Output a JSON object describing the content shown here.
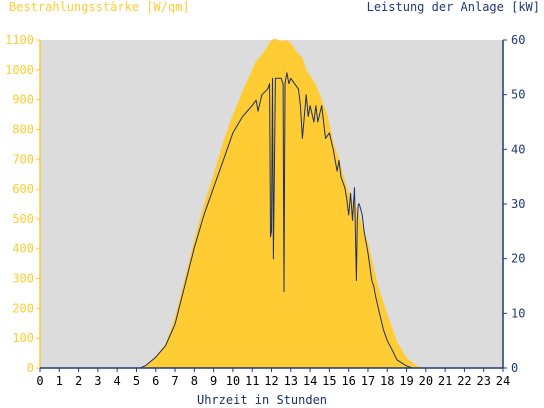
{
  "chart_data": {
    "type": "area",
    "left_axis_title": "Bestrahlungsstärke [W/qm]",
    "right_axis_title": "Leistung der Anlage [kW]",
    "xlabel": "Uhrzeit in Stunden",
    "x_ticks": [
      "0",
      "1",
      "2",
      "3",
      "4",
      "5",
      "6",
      "7",
      "8",
      "9",
      "10",
      "11",
      "12",
      "13",
      "14",
      "15",
      "16",
      "17",
      "18",
      "19",
      "20",
      "21",
      "22",
      "23",
      "24"
    ],
    "y_left_ticks": [
      "0",
      "100",
      "200",
      "300",
      "400",
      "500",
      "600",
      "700",
      "800",
      "900",
      "1000",
      "1100"
    ],
    "y_right_ticks": [
      "0",
      "10",
      "20",
      "30",
      "40",
      "50",
      "60"
    ],
    "xlim": [
      0,
      24
    ],
    "ylim_left": [
      0,
      1100
    ],
    "ylim_right": [
      0,
      60
    ],
    "grid": false,
    "colors": {
      "irradiance_fill": "#FFCC33",
      "power_line": "#1F2F66",
      "plot_background": "#DCDCDC",
      "left_axis_color": "#FFCC33",
      "right_axis_color": "#1F3A7A"
    },
    "series": [
      {
        "axis": "left",
        "style": "area",
        "x": [
          0,
          5.2,
          5.5,
          6.0,
          6.5,
          7.0,
          7.5,
          8.0,
          8.5,
          9.0,
          9.5,
          10.0,
          10.5,
          11.0,
          11.2,
          11.5,
          11.8,
          12.0,
          12.2,
          12.5,
          12.8,
          13.0,
          13.3,
          13.6,
          13.8,
          14.0,
          14.3,
          14.6,
          14.9,
          15.2,
          15.5,
          15.8,
          16.0,
          16.2,
          16.4,
          16.5,
          16.7,
          17.0,
          17.3,
          17.5,
          18.0,
          18.5,
          19.0,
          19.5,
          20.0,
          24
        ],
        "y": [
          0,
          0,
          10,
          40,
          80,
          170,
          300,
          430,
          550,
          650,
          760,
          850,
          930,
          1000,
          1030,
          1050,
          1080,
          1100,
          1105,
          1095,
          1100,
          1090,
          1060,
          1040,
          1000,
          980,
          950,
          900,
          850,
          760,
          700,
          630,
          590,
          560,
          540,
          520,
          480,
          420,
          340,
          280,
          180,
          90,
          35,
          8,
          0,
          0
        ]
      },
      {
        "axis": "right",
        "style": "line",
        "x": [
          0,
          5.2,
          5.5,
          6.0,
          6.5,
          7.0,
          7.5,
          8.0,
          8.5,
          9.0,
          9.5,
          10.0,
          10.5,
          11.0,
          11.2,
          11.3,
          11.5,
          11.8,
          11.9,
          11.95,
          12.0,
          12.05,
          12.1,
          12.2,
          12.5,
          12.6,
          12.65,
          12.7,
          12.8,
          12.9,
          13.0,
          13.2,
          13.4,
          13.5,
          13.6,
          13.8,
          13.9,
          14.0,
          14.2,
          14.3,
          14.4,
          14.6,
          14.8,
          15.0,
          15.2,
          15.4,
          15.5,
          15.6,
          15.8,
          15.9,
          16.0,
          16.1,
          16.2,
          16.3,
          16.4,
          16.45,
          16.5,
          16.55,
          16.7,
          16.8,
          17.0,
          17.2,
          17.3,
          17.4,
          17.6,
          17.8,
          18.0,
          18.3,
          18.5,
          18.8,
          19.0,
          19.3,
          19.6,
          20.0,
          24
        ],
        "y": [
          0,
          0,
          0.5,
          2,
          4,
          8,
          15,
          22,
          28,
          33,
          38,
          43,
          46,
          48,
          49,
          47,
          50,
          51,
          52,
          24,
          25,
          53,
          20,
          53,
          53,
          52,
          14,
          52,
          54,
          52,
          53,
          52,
          51,
          48,
          42,
          50,
          46,
          48,
          45,
          48,
          45,
          48,
          42,
          43,
          40,
          36,
          38,
          35,
          33,
          31,
          28,
          32,
          27,
          33,
          16,
          27,
          30,
          30,
          28,
          25,
          21,
          16,
          15,
          13,
          10,
          7,
          5,
          3,
          1.5,
          0.8,
          0.4,
          0,
          0,
          0,
          0
        ]
      }
    ]
  }
}
